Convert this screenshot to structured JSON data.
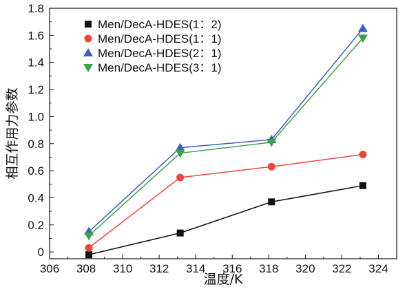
{
  "chart_data": {
    "type": "line",
    "title": "",
    "xlabel": "温度/K",
    "ylabel": "相互作用力参数",
    "xlim": [
      306,
      325
    ],
    "ylim": [
      -0.05,
      1.8
    ],
    "xticks": [
      306,
      308,
      310,
      312,
      314,
      316,
      318,
      320,
      322,
      324
    ],
    "yticks": [
      0,
      0.2,
      0.4,
      0.6,
      0.8,
      1.0,
      1.2,
      1.4,
      1.6,
      1.8
    ],
    "ytick_labels": [
      "0",
      "0.2",
      "0.4",
      "0.6",
      "0.8",
      "1.0",
      "1.2",
      "1.4",
      "1.6",
      "1.8"
    ],
    "grid": false,
    "legend_position": "top-left",
    "x": [
      308.15,
      313.15,
      318.15,
      323.15
    ],
    "series": [
      {
        "name": "Men/DecA-HDES(1：2)",
        "marker": "square",
        "color": "#111111",
        "values": [
          -0.02,
          0.14,
          0.37,
          0.49
        ]
      },
      {
        "name": "Men/DecA-HDES(1：1)",
        "marker": "circle",
        "color": "#e8473f",
        "values": [
          0.03,
          0.55,
          0.63,
          0.72
        ]
      },
      {
        "name": "Men/DecA-HDES(2：1)",
        "marker": "triangle-up",
        "color": "#3f5fb8",
        "values": [
          0.15,
          0.77,
          0.83,
          1.65
        ]
      },
      {
        "name": "Men/DecA-HDES(3：1)",
        "marker": "triangle-down",
        "color": "#3aa34a",
        "values": [
          0.12,
          0.73,
          0.81,
          1.58
        ]
      }
    ]
  }
}
